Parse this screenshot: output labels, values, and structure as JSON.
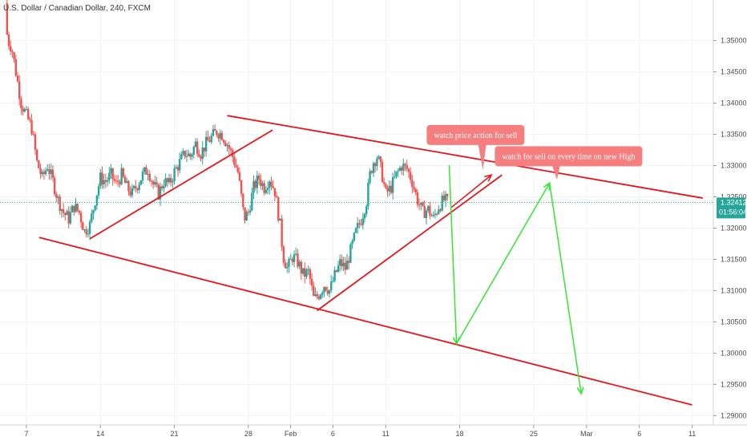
{
  "chart_data": {
    "type": "candlestick",
    "title": "U.S. Dollar / Canadian Dollar, 240, FXCM",
    "symbol": "USDCAD",
    "timeframe": "240",
    "source": "FXCM",
    "x_ticks": [
      {
        "day": 7,
        "label": "7"
      },
      {
        "day": 14,
        "label": "14"
      },
      {
        "day": 21,
        "label": "21"
      },
      {
        "day": 28,
        "label": "28"
      },
      {
        "day": 32,
        "label": "Feb"
      },
      {
        "day": 36,
        "label": "6"
      },
      {
        "day": 41,
        "label": "11"
      },
      {
        "day": 48,
        "label": "18"
      },
      {
        "day": 55,
        "label": "25"
      },
      {
        "day": 60,
        "label": "Mar"
      },
      {
        "day": 65,
        "label": "6"
      },
      {
        "day": 70,
        "label": "11"
      }
    ],
    "y_ticks": [
      1.29,
      1.295,
      1.3,
      1.305,
      1.31,
      1.315,
      1.32,
      1.325,
      1.33,
      1.335,
      1.34,
      1.345,
      1.35
    ],
    "y_tick_labels": [
      "1.29000",
      "1.29500",
      "1.30000",
      "1.30500",
      "1.31000",
      "1.31500",
      "1.32000",
      "1.32500",
      "1.33000",
      "1.33500",
      "1.34000",
      "1.34500",
      "1.35000"
    ],
    "ylim": [
      1.2885,
      1.3565
    ],
    "xlim": [
      4.5,
      72
    ],
    "last_price": 1.32412,
    "last_price_label": "1.32412",
    "countdown_label": "01:56:04",
    "price_path": [
      [
        5.0,
        1.356
      ],
      [
        5.2,
        1.35
      ],
      [
        5.6,
        1.349
      ],
      [
        6.0,
        1.345
      ],
      [
        6.5,
        1.34
      ],
      [
        7.0,
        1.338
      ],
      [
        7.5,
        1.336
      ],
      [
        8.0,
        1.3305
      ],
      [
        8.5,
        1.328
      ],
      [
        9.0,
        1.33
      ],
      [
        9.5,
        1.3275
      ],
      [
        10.0,
        1.3245
      ],
      [
        10.5,
        1.3225
      ],
      [
        11.0,
        1.3215
      ],
      [
        11.5,
        1.3235
      ],
      [
        12.0,
        1.3225
      ],
      [
        12.5,
        1.3195
      ],
      [
        13.0,
        1.3205
      ],
      [
        13.5,
        1.3245
      ],
      [
        14.0,
        1.328
      ],
      [
        14.5,
        1.3275
      ],
      [
        15.0,
        1.3285
      ],
      [
        15.5,
        1.327
      ],
      [
        16.0,
        1.3285
      ],
      [
        16.5,
        1.3265
      ],
      [
        17.0,
        1.3255
      ],
      [
        17.5,
        1.327
      ],
      [
        18.0,
        1.3285
      ],
      [
        18.5,
        1.3295
      ],
      [
        19.0,
        1.327
      ],
      [
        19.5,
        1.3255
      ],
      [
        20.0,
        1.3275
      ],
      [
        20.5,
        1.327
      ],
      [
        21.0,
        1.329
      ],
      [
        21.5,
        1.3305
      ],
      [
        22.0,
        1.332
      ],
      [
        22.5,
        1.3315
      ],
      [
        23.0,
        1.3335
      ],
      [
        23.5,
        1.332
      ],
      [
        24.0,
        1.3335
      ],
      [
        24.5,
        1.3345
      ],
      [
        25.0,
        1.3355
      ],
      [
        25.5,
        1.335
      ],
      [
        26.0,
        1.3335
      ],
      [
        26.5,
        1.3315
      ],
      [
        27.0,
        1.329
      ],
      [
        27.3,
        1.3255
      ],
      [
        27.6,
        1.3215
      ],
      [
        28.0,
        1.3225
      ],
      [
        28.5,
        1.3265
      ],
      [
        29.0,
        1.328
      ],
      [
        29.5,
        1.3265
      ],
      [
        30.0,
        1.328
      ],
      [
        30.5,
        1.326
      ],
      [
        31.0,
        1.3205
      ],
      [
        31.3,
        1.3155
      ],
      [
        31.7,
        1.3135
      ],
      [
        32.2,
        1.3155
      ],
      [
        32.7,
        1.3145
      ],
      [
        33.2,
        1.3125
      ],
      [
        33.7,
        1.313
      ],
      [
        34.2,
        1.3085
      ],
      [
        34.7,
        1.3095
      ],
      [
        35.2,
        1.311
      ],
      [
        35.7,
        1.31
      ],
      [
        36.2,
        1.3125
      ],
      [
        36.7,
        1.3145
      ],
      [
        37.2,
        1.3135
      ],
      [
        37.7,
        1.3165
      ],
      [
        38.2,
        1.3195
      ],
      [
        38.7,
        1.3215
      ],
      [
        39.2,
        1.3245
      ],
      [
        39.5,
        1.3285
      ],
      [
        39.8,
        1.3305
      ],
      [
        40.2,
        1.3315
      ],
      [
        40.6,
        1.329
      ],
      [
        41.0,
        1.3255
      ],
      [
        41.5,
        1.3265
      ],
      [
        42.0,
        1.3285
      ],
      [
        42.5,
        1.33
      ],
      [
        43.0,
        1.3295
      ],
      [
        43.5,
        1.3275
      ],
      [
        44.0,
        1.3245
      ],
      [
        44.5,
        1.3225
      ],
      [
        45.0,
        1.323
      ],
      [
        45.5,
        1.3215
      ],
      [
        46.0,
        1.3235
      ],
      [
        46.5,
        1.3245
      ],
      [
        47.0,
        1.3241
      ]
    ],
    "drawings": [
      {
        "kind": "line",
        "color": "#e8141c",
        "points": [
          [
            26,
            1.338
          ],
          [
            71,
            1.3248
          ]
        ]
      },
      {
        "kind": "line",
        "color": "#e8141c",
        "points": [
          [
            8.2,
            1.3185
          ],
          [
            70,
            1.2917
          ]
        ]
      },
      {
        "kind": "line",
        "color": "#e8141c",
        "points": [
          [
            13,
            1.3183
          ],
          [
            30.3,
            1.3357
          ]
        ]
      },
      {
        "kind": "line",
        "color": "#e8141c",
        "points": [
          [
            34.5,
            1.3068
          ],
          [
            52,
            1.3285
          ]
        ]
      },
      {
        "kind": "arrow",
        "color": "#e8141c",
        "points": [
          [
            47.2,
            1.3233
          ],
          [
            51,
            1.3285
          ]
        ]
      },
      {
        "kind": "arrow",
        "color": "#33e633",
        "points": [
          [
            47.0,
            1.3301
          ],
          [
            47.7,
            1.3015
          ],
          [
            56.5,
            1.3272
          ],
          [
            59.5,
            1.2935
          ]
        ]
      }
    ],
    "annotations": [
      {
        "text": "watch price action for sell",
        "day": 49.5,
        "price": 1.3349,
        "pointer_day": 50.2,
        "pointer_price": 1.3293
      },
      {
        "text": "watch for sell on every time on new High",
        "day": 58.3,
        "price": 1.3315,
        "pointer_day": 57.2,
        "pointer_price": 1.3278
      }
    ]
  }
}
